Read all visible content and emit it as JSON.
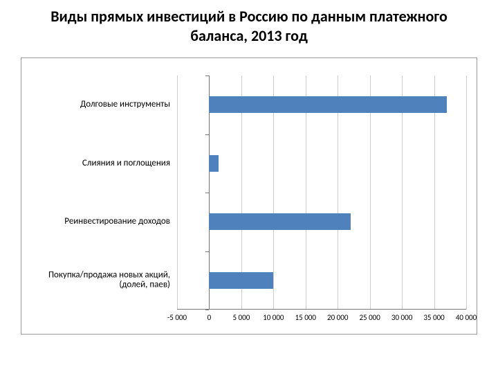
{
  "title": "Виды прямых инвестиций в Россию по данным платежного баланса, 2013 год",
  "title_fontsize": 22,
  "chart": {
    "type": "bar-horizontal",
    "background_color": "#ffffff",
    "border_color": "#999999",
    "grid_color": "#cccccc",
    "axis_color": "#777777",
    "bar_color": "#4f81bd",
    "xmin": -5000,
    "xmax": 40000,
    "xtick_step": 5000,
    "xticks": [
      -5000,
      0,
      5000,
      10000,
      15000,
      20000,
      25000,
      30000,
      35000,
      40000
    ],
    "xtick_labels": [
      "-5 000",
      "0",
      "5 000",
      "10 000",
      "15 000",
      "20 000",
      "25 000",
      "30 000",
      "35 000",
      "40 000"
    ],
    "tick_fontsize": 11,
    "category_fontsize": 13,
    "bar_thickness": 24,
    "categories": [
      {
        "label": "Долговые инструменты",
        "value": 37000
      },
      {
        "label": "Слияния и поглощения",
        "value": 1500
      },
      {
        "label": "Реинвестирование доходов",
        "value": 22000
      },
      {
        "label": "Покупка/продажа новых акций, (долей, паев)",
        "value": 10000
      }
    ]
  }
}
